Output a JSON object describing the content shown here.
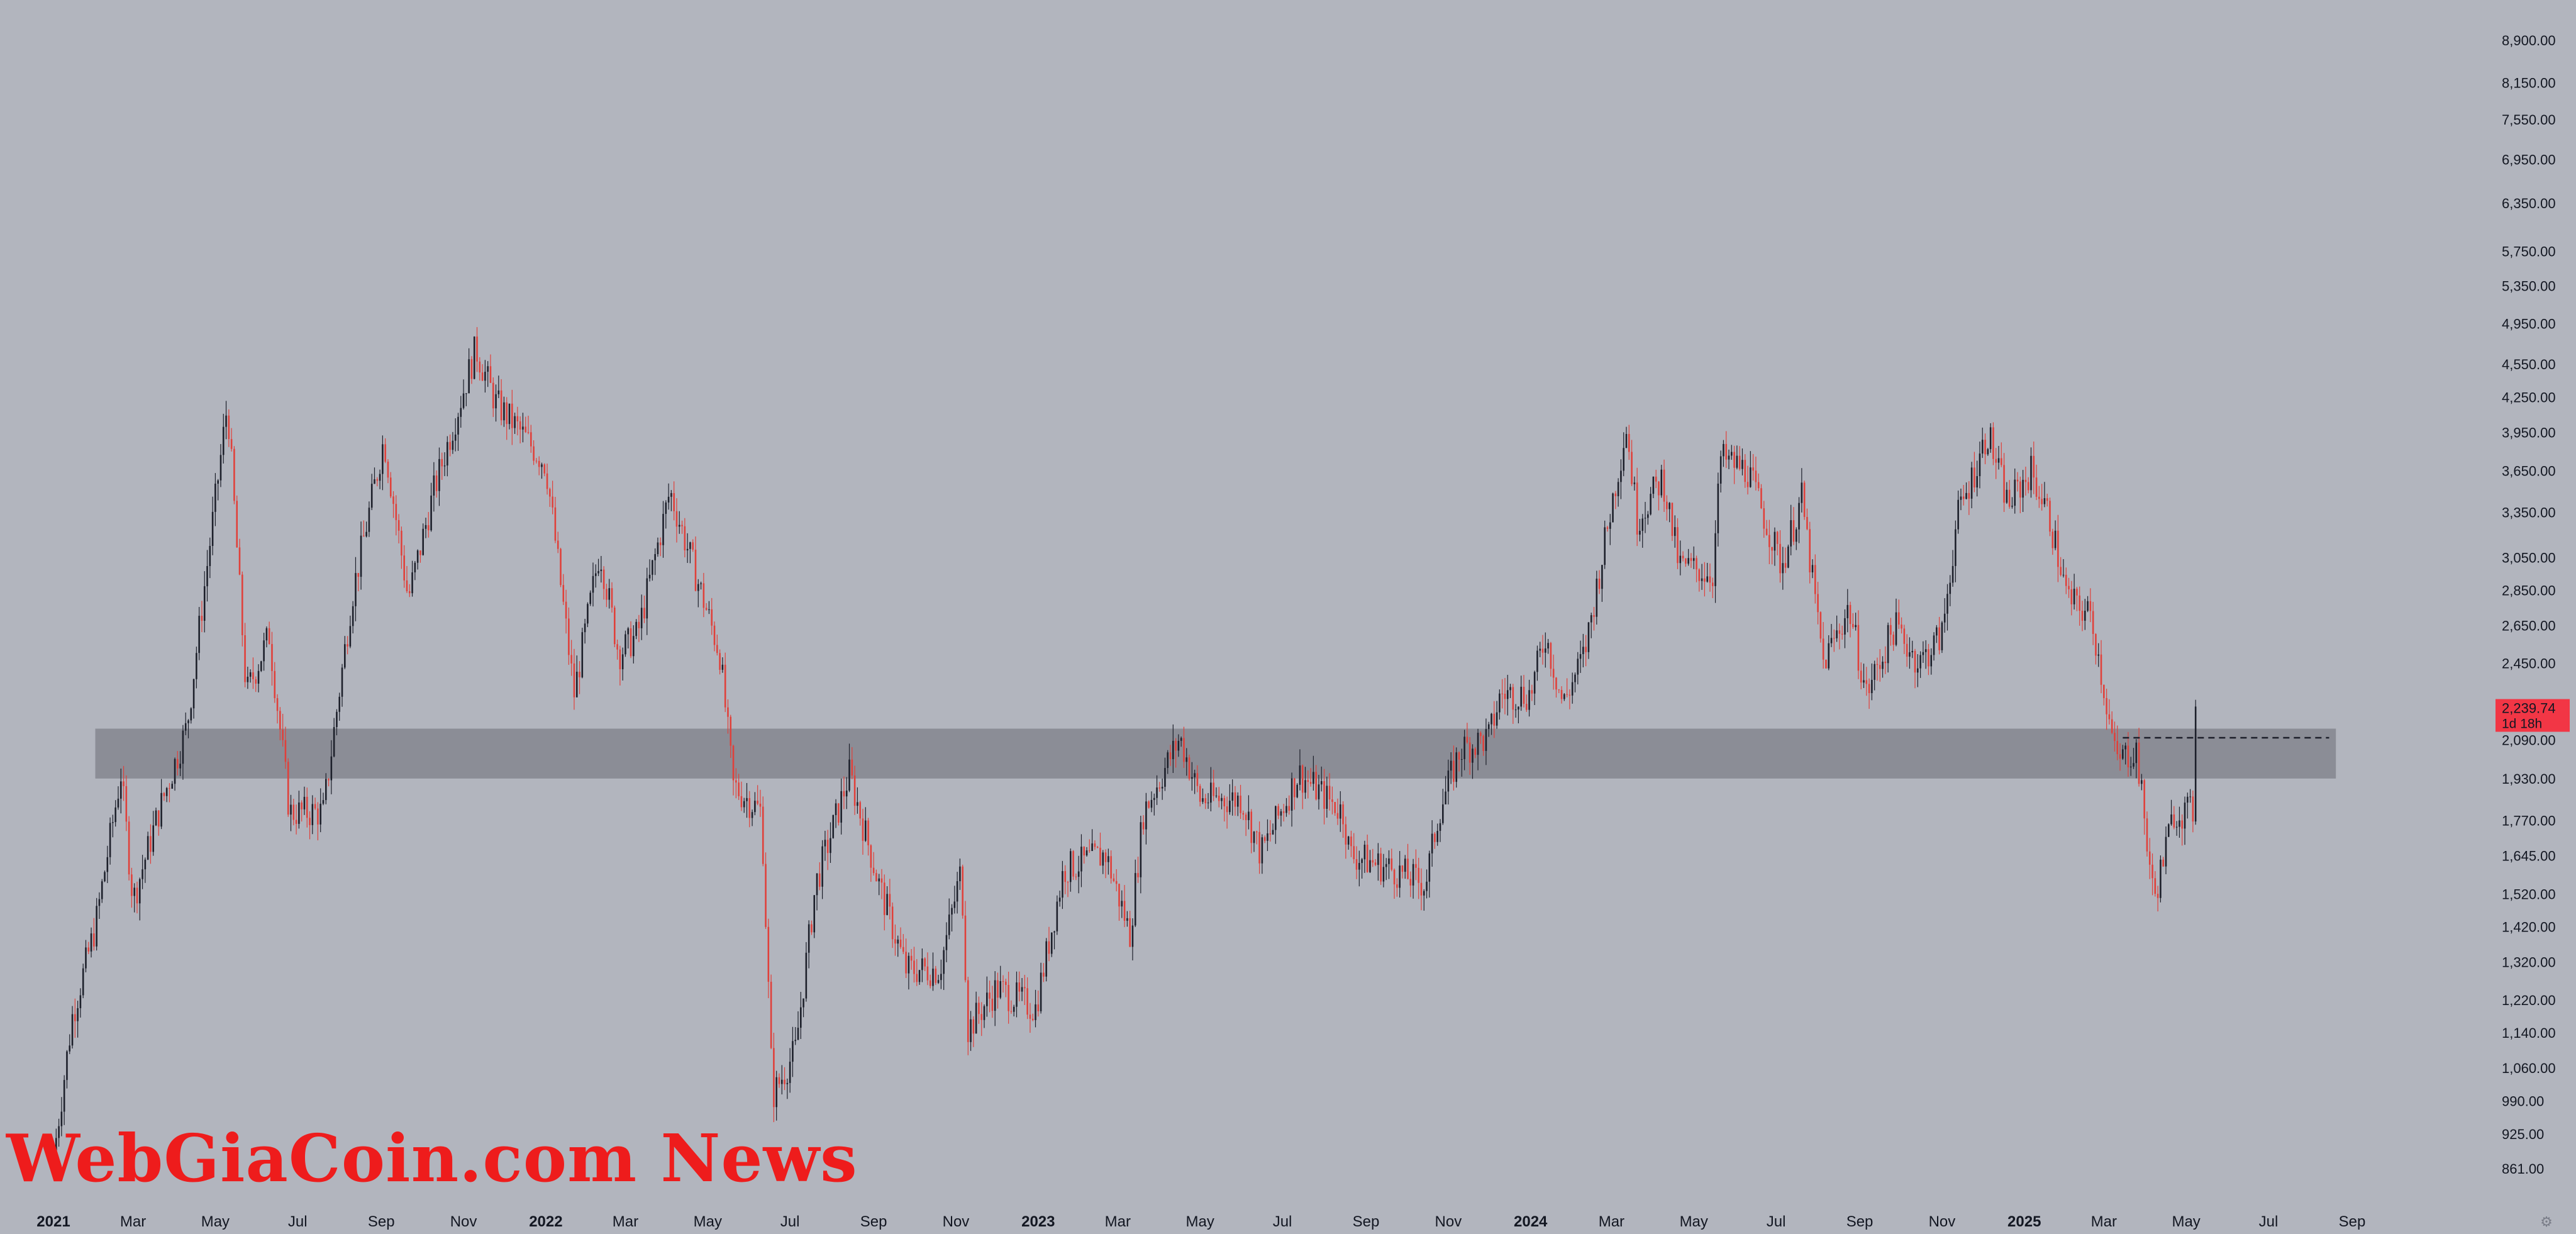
{
  "watermark": "WebGiaCoin.com News",
  "colors": {
    "background": "#b2b5be",
    "up_candle": "#1c1f2a",
    "down_candle": "#e0403a",
    "support_zone": "#8b8d96",
    "price_label_bg": "#f23645",
    "text": "#131722"
  },
  "icons": {
    "settings": "gear-icon"
  },
  "chart_data": {
    "type": "candlestick",
    "instrument_price_label": {
      "price": "2,239.74",
      "countdown": "1d 18h"
    },
    "y_scale": "log",
    "ylim": [
      815,
      9300
    ],
    "xlim": [
      "2021-01-01",
      "2025-09-15"
    ],
    "grid": false,
    "y_tick_labels": [
      "8,900.00",
      "8,150.00",
      "7,550.00",
      "6,950.00",
      "6,350.00",
      "5,750.00",
      "5,350.00",
      "4,950.00",
      "4,550.00",
      "4,250.00",
      "3,950.00",
      "3,650.00",
      "3,350.00",
      "3,050.00",
      "2,850.00",
      "2,650.00",
      "2,450.00",
      "2,090.00",
      "1,930.00",
      "1,770.00",
      "1,645.00",
      "1,520.00",
      "1,420.00",
      "1,320.00",
      "1,220.00",
      "1,140.00",
      "1,060.00",
      "990.00",
      "925.00",
      "861.00"
    ],
    "x_tick_labels": [
      {
        "label": "2021",
        "date": "2021-01-01",
        "bold": true
      },
      {
        "label": "Mar",
        "date": "2021-03-01"
      },
      {
        "label": "May",
        "date": "2021-05-01"
      },
      {
        "label": "Jul",
        "date": "2021-07-01"
      },
      {
        "label": "Sep",
        "date": "2021-09-01"
      },
      {
        "label": "Nov",
        "date": "2021-11-01"
      },
      {
        "label": "2022",
        "date": "2022-01-01",
        "bold": true
      },
      {
        "label": "Mar",
        "date": "2022-03-01"
      },
      {
        "label": "May",
        "date": "2022-05-01"
      },
      {
        "label": "Jul",
        "date": "2022-07-01"
      },
      {
        "label": "Sep",
        "date": "2022-09-01"
      },
      {
        "label": "Nov",
        "date": "2022-11-01"
      },
      {
        "label": "2023",
        "date": "2023-01-01",
        "bold": true
      },
      {
        "label": "Mar",
        "date": "2023-03-01"
      },
      {
        "label": "May",
        "date": "2023-05-01"
      },
      {
        "label": "Jul",
        "date": "2023-07-01"
      },
      {
        "label": "Sep",
        "date": "2023-09-01"
      },
      {
        "label": "Nov",
        "date": "2023-11-01"
      },
      {
        "label": "2024",
        "date": "2024-01-01",
        "bold": true
      },
      {
        "label": "Mar",
        "date": "2024-03-01"
      },
      {
        "label": "May",
        "date": "2024-05-01"
      },
      {
        "label": "Jul",
        "date": "2024-07-01"
      },
      {
        "label": "Sep",
        "date": "2024-09-01"
      },
      {
        "label": "Nov",
        "date": "2024-11-01"
      },
      {
        "label": "2025",
        "date": "2025-01-01",
        "bold": true
      },
      {
        "label": "Mar",
        "date": "2025-03-01"
      },
      {
        "label": "May",
        "date": "2025-05-01"
      },
      {
        "label": "Jul",
        "date": "2025-07-01"
      },
      {
        "label": "Sep",
        "date": "2025-09-01"
      }
    ],
    "support_zone": {
      "low": 1930,
      "high": 2140,
      "from": "2021-02-01",
      "to": "2025-08-20"
    },
    "reference_line": {
      "price": 2100,
      "from": "2025-03-15",
      "to": "2025-08-15",
      "style": "dashed"
    },
    "price_path": [
      [
        "2021-01-01",
        880
      ],
      [
        "2021-01-15",
        1180
      ],
      [
        "2021-02-01",
        1420
      ],
      [
        "2021-02-20",
        1950
      ],
      [
        "2021-03-01",
        1500
      ],
      [
        "2021-03-20",
        1800
      ],
      [
        "2021-04-10",
        2150
      ],
      [
        "2021-05-10",
        4200
      ],
      [
        "2021-05-24",
        2300
      ],
      [
        "2021-06-10",
        2600
      ],
      [
        "2021-06-25",
        1800
      ],
      [
        "2021-07-20",
        1800
      ],
      [
        "2021-08-10",
        2800
      ],
      [
        "2021-09-03",
        3900
      ],
      [
        "2021-09-21",
        2800
      ],
      [
        "2021-10-10",
        3500
      ],
      [
        "2021-11-10",
        4700
      ],
      [
        "2021-11-25",
        4200
      ],
      [
        "2021-12-10",
        4000
      ],
      [
        "2022-01-01",
        3700
      ],
      [
        "2022-01-22",
        2300
      ],
      [
        "2022-02-10",
        3100
      ],
      [
        "2022-02-24",
        2500
      ],
      [
        "2022-03-10",
        2600
      ],
      [
        "2022-04-03",
        3500
      ],
      [
        "2022-04-20",
        3000
      ],
      [
        "2022-05-10",
        2500
      ],
      [
        "2022-05-20",
        1900
      ],
      [
        "2022-06-10",
        1800
      ],
      [
        "2022-06-18",
        1000
      ],
      [
        "2022-07-05",
        1100
      ],
      [
        "2022-07-20",
        1550
      ],
      [
        "2022-08-14",
        1950
      ],
      [
        "2022-09-05",
        1550
      ],
      [
        "2022-09-25",
        1300
      ],
      [
        "2022-10-20",
        1300
      ],
      [
        "2022-11-05",
        1600
      ],
      [
        "2022-11-10",
        1150
      ],
      [
        "2022-12-01",
        1250
      ],
      [
        "2022-12-30",
        1200
      ],
      [
        "2023-01-20",
        1600
      ],
      [
        "2023-02-20",
        1650
      ],
      [
        "2023-03-10",
        1400
      ],
      [
        "2023-03-20",
        1800
      ],
      [
        "2023-04-16",
        2100
      ],
      [
        "2023-05-01",
        1850
      ],
      [
        "2023-06-01",
        1850
      ],
      [
        "2023-06-15",
        1650
      ],
      [
        "2023-07-13",
        1950
      ],
      [
        "2023-08-15",
        1800
      ],
      [
        "2023-08-20",
        1650
      ],
      [
        "2023-09-20",
        1600
      ],
      [
        "2023-10-15",
        1550
      ],
      [
        "2023-10-25",
        1800
      ],
      [
        "2023-11-10",
        2050
      ],
      [
        "2023-12-01",
        2100
      ],
      [
        "2023-12-10",
        2300
      ],
      [
        "2024-01-01",
        2300
      ],
      [
        "2024-01-12",
        2600
      ],
      [
        "2024-01-25",
        2250
      ],
      [
        "2024-02-10",
        2500
      ],
      [
        "2024-03-01",
        3400
      ],
      [
        "2024-03-12",
        4000
      ],
      [
        "2024-03-20",
        3300
      ],
      [
        "2024-04-08",
        3600
      ],
      [
        "2024-04-20",
        3000
      ],
      [
        "2024-05-15",
        2950
      ],
      [
        "2024-05-21",
        3750
      ],
      [
        "2024-06-10",
        3650
      ],
      [
        "2024-07-05",
        3000
      ],
      [
        "2024-07-20",
        3450
      ],
      [
        "2024-08-05",
        2450
      ],
      [
        "2024-08-24",
        2750
      ],
      [
        "2024-09-06",
        2300
      ],
      [
        "2024-09-27",
        2650
      ],
      [
        "2024-10-15",
        2450
      ],
      [
        "2024-11-01",
        2600
      ],
      [
        "2024-11-12",
        3300
      ],
      [
        "2024-12-05",
        3950
      ],
      [
        "2024-12-20",
        3400
      ],
      [
        "2025-01-06",
        3650
      ],
      [
        "2025-01-20",
        3300
      ],
      [
        "2025-02-02",
        2800
      ],
      [
        "2025-02-20",
        2700
      ],
      [
        "2025-03-10",
        2000
      ],
      [
        "2025-03-25",
        2050
      ],
      [
        "2025-04-07",
        1500
      ],
      [
        "2025-04-22",
        1800
      ],
      [
        "2025-05-06",
        1800
      ],
      [
        "2025-05-09",
        2240
      ]
    ]
  }
}
